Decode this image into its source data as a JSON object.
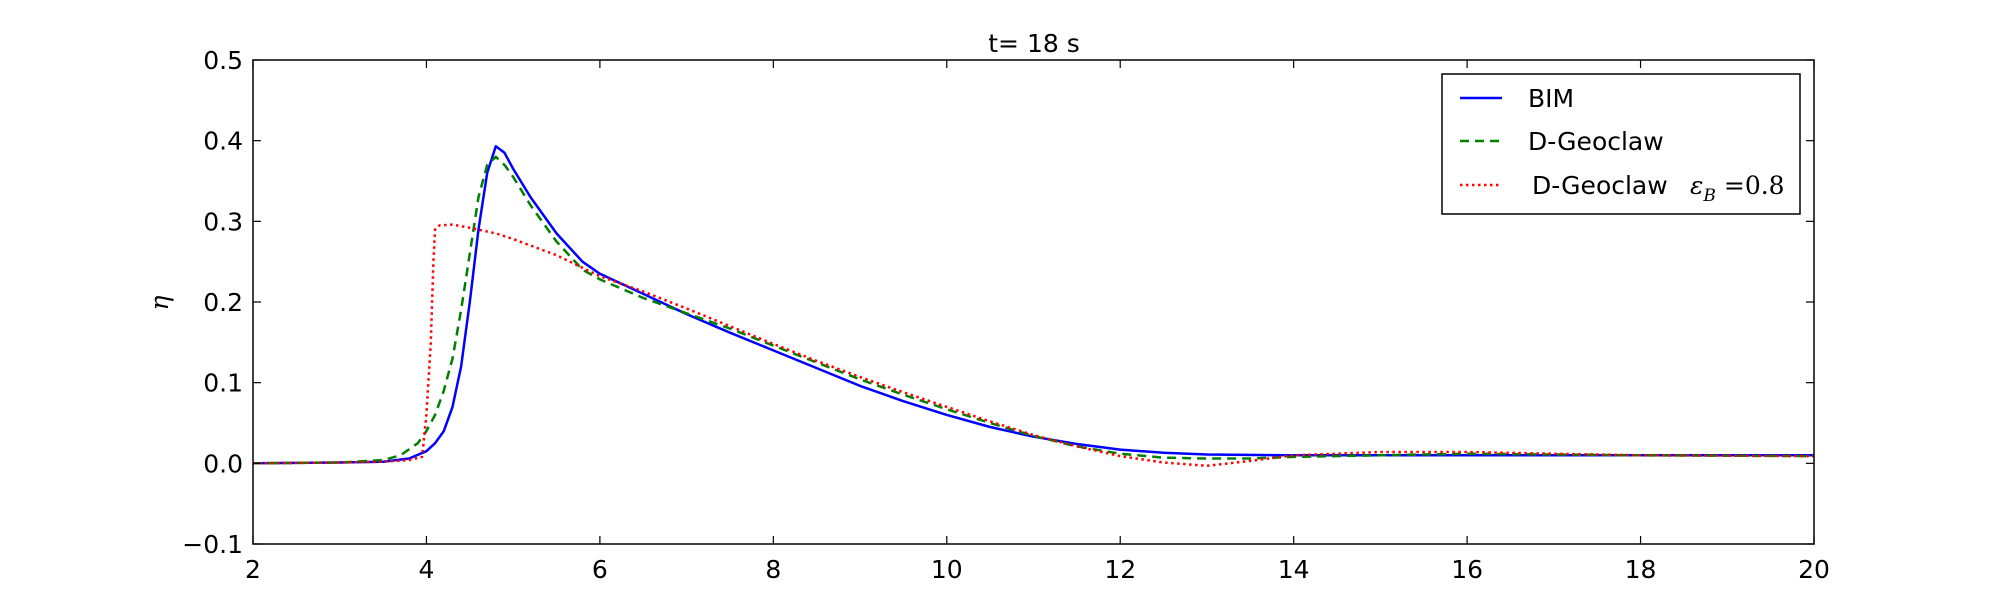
{
  "chart_data": {
    "type": "line",
    "title": "t= 18 s",
    "xlabel": "",
    "ylabel": "η",
    "xlim": [
      2,
      20
    ],
    "ylim": [
      -0.1,
      0.5
    ],
    "xticks": [
      2,
      4,
      6,
      8,
      10,
      12,
      14,
      16,
      18,
      20
    ],
    "yticks": [
      -0.1,
      0.0,
      0.1,
      0.2,
      0.3,
      0.4,
      0.5
    ],
    "xtick_labels": [
      "2",
      "4",
      "6",
      "8",
      "10",
      "12",
      "14",
      "16",
      "18",
      "20"
    ],
    "ytick_labels": [
      "−0.1",
      "0.0",
      "0.1",
      "0.2",
      "0.3",
      "0.4",
      "0.5"
    ],
    "grid": false,
    "legend_position": "top-right",
    "series": [
      {
        "name": "BIM",
        "color": "#0000ff",
        "style": "solid",
        "points": [
          [
            2,
            0.0
          ],
          [
            3,
            0.001
          ],
          [
            3.5,
            0.002
          ],
          [
            3.8,
            0.006
          ],
          [
            4.0,
            0.015
          ],
          [
            4.1,
            0.025
          ],
          [
            4.2,
            0.04
          ],
          [
            4.3,
            0.07
          ],
          [
            4.4,
            0.12
          ],
          [
            4.5,
            0.2
          ],
          [
            4.6,
            0.29
          ],
          [
            4.7,
            0.36
          ],
          [
            4.8,
            0.393
          ],
          [
            4.9,
            0.385
          ],
          [
            5.0,
            0.365
          ],
          [
            5.2,
            0.33
          ],
          [
            5.5,
            0.285
          ],
          [
            5.8,
            0.25
          ],
          [
            6.0,
            0.235
          ],
          [
            6.5,
            0.21
          ],
          [
            7,
            0.185
          ],
          [
            7.5,
            0.162
          ],
          [
            8,
            0.14
          ],
          [
            8.5,
            0.118
          ],
          [
            9,
            0.096
          ],
          [
            9.5,
            0.077
          ],
          [
            10,
            0.06
          ],
          [
            10.5,
            0.045
          ],
          [
            11,
            0.033
          ],
          [
            11.5,
            0.024
          ],
          [
            12,
            0.017
          ],
          [
            12.5,
            0.013
          ],
          [
            13,
            0.011
          ],
          [
            14,
            0.01
          ],
          [
            15,
            0.01
          ],
          [
            16,
            0.01
          ],
          [
            18,
            0.01
          ],
          [
            20,
            0.01
          ]
        ]
      },
      {
        "name": "D-Geoclaw",
        "color": "#008000",
        "style": "dashed",
        "points": [
          [
            2,
            0.0
          ],
          [
            3,
            0.001
          ],
          [
            3.5,
            0.004
          ],
          [
            3.7,
            0.01
          ],
          [
            3.9,
            0.025
          ],
          [
            4.0,
            0.04
          ],
          [
            4.1,
            0.06
          ],
          [
            4.2,
            0.09
          ],
          [
            4.3,
            0.13
          ],
          [
            4.4,
            0.19
          ],
          [
            4.5,
            0.26
          ],
          [
            4.6,
            0.33
          ],
          [
            4.7,
            0.37
          ],
          [
            4.8,
            0.38
          ],
          [
            4.9,
            0.37
          ],
          [
            5.0,
            0.355
          ],
          [
            5.2,
            0.32
          ],
          [
            5.5,
            0.275
          ],
          [
            5.8,
            0.24
          ],
          [
            6.0,
            0.228
          ],
          [
            6.5,
            0.205
          ],
          [
            7,
            0.186
          ],
          [
            7.5,
            0.167
          ],
          [
            8,
            0.146
          ],
          [
            8.5,
            0.125
          ],
          [
            9,
            0.104
          ],
          [
            9.5,
            0.085
          ],
          [
            10,
            0.067
          ],
          [
            10.5,
            0.05
          ],
          [
            11,
            0.034
          ],
          [
            11.5,
            0.021
          ],
          [
            12,
            0.012
          ],
          [
            12.5,
            0.007
          ],
          [
            13,
            0.006
          ],
          [
            13.5,
            0.006
          ],
          [
            14,
            0.008
          ],
          [
            15,
            0.01
          ],
          [
            16,
            0.012
          ],
          [
            17,
            0.011
          ],
          [
            18,
            0.01
          ],
          [
            20,
            0.009
          ]
        ]
      },
      {
        "name": "D-Geoclaw",
        "name_math": "ε",
        "name_sub": "B",
        "name_value": " =0.8",
        "color": "#ff0000",
        "style": "dotted",
        "points": [
          [
            2,
            0.0
          ],
          [
            3,
            0.001
          ],
          [
            3.5,
            0.002
          ],
          [
            3.8,
            0.004
          ],
          [
            3.95,
            0.008
          ],
          [
            4.0,
            0.06
          ],
          [
            4.05,
            0.15
          ],
          [
            4.08,
            0.25
          ],
          [
            4.1,
            0.29
          ],
          [
            4.15,
            0.295
          ],
          [
            4.3,
            0.296
          ],
          [
            4.5,
            0.292
          ],
          [
            4.8,
            0.285
          ],
          [
            5.0,
            0.278
          ],
          [
            5.5,
            0.258
          ],
          [
            6.0,
            0.232
          ],
          [
            6.5,
            0.213
          ],
          [
            7,
            0.192
          ],
          [
            7.5,
            0.17
          ],
          [
            8,
            0.148
          ],
          [
            8.5,
            0.127
          ],
          [
            9,
            0.107
          ],
          [
            9.5,
            0.088
          ],
          [
            10,
            0.07
          ],
          [
            10.5,
            0.052
          ],
          [
            11,
            0.035
          ],
          [
            11.5,
            0.021
          ],
          [
            12,
            0.009
          ],
          [
            12.5,
            0.001
          ],
          [
            13,
            -0.003
          ],
          [
            13.5,
            0.003
          ],
          [
            14,
            0.01
          ],
          [
            15,
            0.014
          ],
          [
            16,
            0.014
          ],
          [
            17,
            0.012
          ],
          [
            18,
            0.01
          ],
          [
            20,
            0.009
          ]
        ]
      }
    ]
  }
}
